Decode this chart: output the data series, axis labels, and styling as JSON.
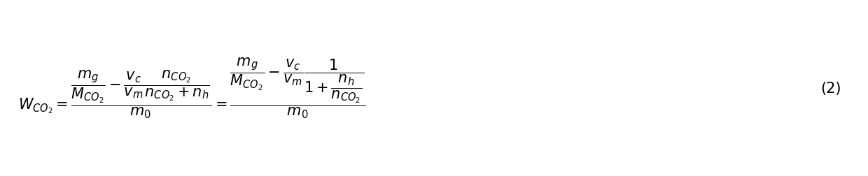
{
  "equation": "W_{CO_2} = \\frac{\\dfrac{m_g}{M_{CO_2}} - \\dfrac{v_c}{v_m}\\dfrac{n_{CO_2}}{n_{CO_2}+n_h}}{m_0} = \\frac{\\dfrac{m_g}{M_{CO_2}} - \\dfrac{v_c}{v_m}\\dfrac{1}{1+\\dfrac{n_h}{n_{CO_2}}}}{m_0}",
  "equation_number": "(2)",
  "background_color": "#ffffff",
  "text_color": "#000000",
  "fontsize": 15,
  "figsize": [
    12.4,
    2.53
  ],
  "dpi": 100
}
